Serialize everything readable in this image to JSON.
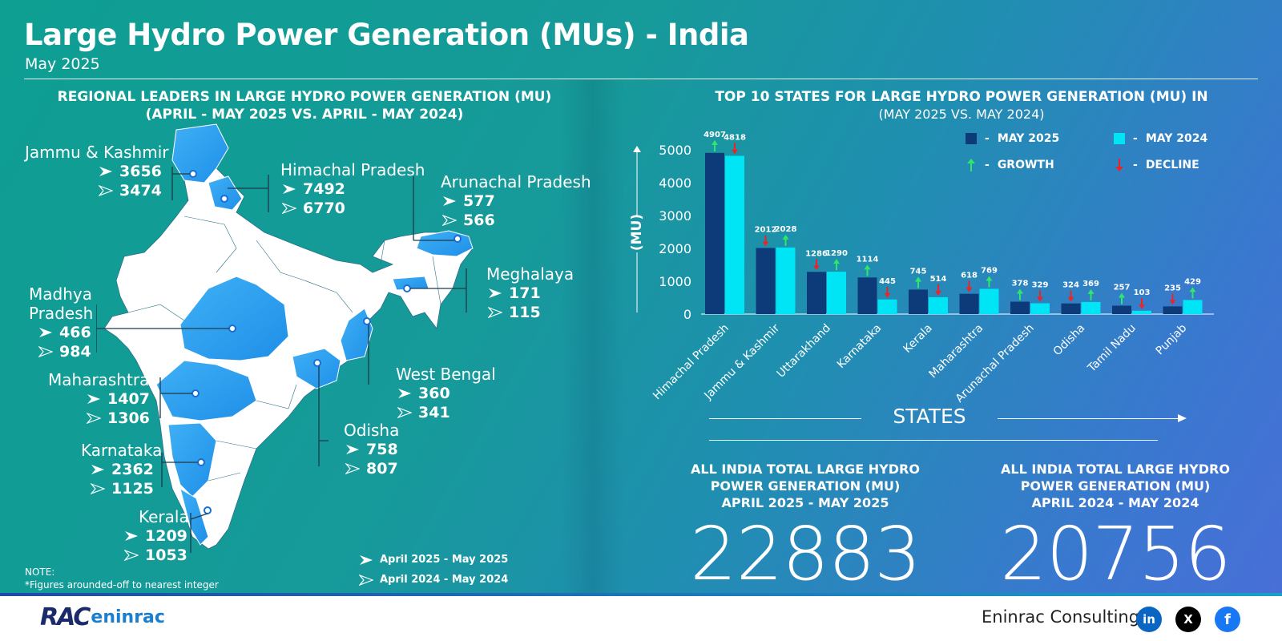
{
  "header": {
    "title": "Large Hydro Power Generation (MUs) - India",
    "subtitle": "May 2025"
  },
  "left": {
    "title_line1": "REGIONAL LEADERS IN LARGE HYDRO POWER GENERATION (MU)",
    "title_line2": "(APRIL - MAY 2025 VS. APRIL - MAY 2024)",
    "regions": [
      {
        "name": "Jammu & Kashmir",
        "v2025": "3656",
        "v2024": "3474"
      },
      {
        "name": "Himachal Pradesh",
        "v2025": "7492",
        "v2024": "6770"
      },
      {
        "name": "Arunachal Pradesh",
        "v2025": "577",
        "v2024": "566"
      },
      {
        "name": "Meghalaya",
        "v2025": "171",
        "v2024": "115"
      },
      {
        "name": "Madhya",
        "name2": "Pradesh",
        "v2025": "466",
        "v2024": "984"
      },
      {
        "name": "Maharashtra",
        "v2025": "1407",
        "v2024": "1306"
      },
      {
        "name": "West Bengal",
        "v2025": "360",
        "v2024": "341"
      },
      {
        "name": "Odisha",
        "v2025": "758",
        "v2024": "807"
      },
      {
        "name": "Karnataka",
        "v2025": "2362",
        "v2024": "1125"
      },
      {
        "name": "Kerala",
        "v2025": "1209",
        "v2024": "1053"
      }
    ],
    "legend_2025": "April 2025 - May 2025",
    "legend_2024": "April 2024 - May 2024",
    "note_title": "NOTE:",
    "note_text": "*Figures arounded-off to nearest integer"
  },
  "right": {
    "title_line1": "TOP 10 STATES FOR LARGE HYDRO POWER GENERATION (MU) IN",
    "title_line2": "(MAY 2025 VS. MAY 2024)",
    "legend": {
      "may2025": "MAY 2025",
      "may2024": "MAY 2024",
      "growth": "GROWTH",
      "decline": "DECLINE",
      "dash": "-"
    },
    "states_label": "STATES",
    "stat1": {
      "line1": "ALL INDIA TOTAL LARGE HYDRO",
      "line2": "POWER GENERATION (MU)",
      "line3": "APRIL 2025 - MAY 2025",
      "value": "22883"
    },
    "stat2": {
      "line1": "ALL INDIA TOTAL LARGE HYDRO",
      "line2": "POWER GENERATION (MU)",
      "line3": "APRIL 2024 - MAY 2024",
      "value": "20756"
    }
  },
  "footer": {
    "brand": "Eninrac Consulting",
    "logo_text": "RAC",
    "logo_sub": "eninrac",
    "social": [
      "in",
      "X",
      "f"
    ]
  },
  "colors": {
    "may2025": "#0d3b7a",
    "may2024": "#00e5f5",
    "growth": "#2ee86a",
    "decline": "#e8262a"
  },
  "chart_data": {
    "type": "bar",
    "categories": [
      "Himachal Pradesh",
      "Jammu & Kashmir",
      "Uttarakhand",
      "Karnataka",
      "Kerala",
      "Maharashtra",
      "Arunachal Pradesh",
      "Odisha",
      "Tamil Nadu",
      "Punjab"
    ],
    "series": [
      {
        "name": "MAY 2025",
        "values": [
          4907,
          2012,
          1286,
          1114,
          745,
          618,
          378,
          324,
          257,
          235
        ]
      },
      {
        "name": "MAY 2024",
        "values": [
          4818,
          2028,
          1290,
          445,
          514,
          769,
          329,
          369,
          103,
          429
        ]
      }
    ],
    "ylabel": "(MU)",
    "xlabel": "STATES",
    "ylim": [
      0,
      5000
    ],
    "yticks": [
      "0",
      "1000",
      "2000",
      "3000",
      "4000",
      "5000"
    ],
    "legend": "top-right",
    "grid": false
  }
}
